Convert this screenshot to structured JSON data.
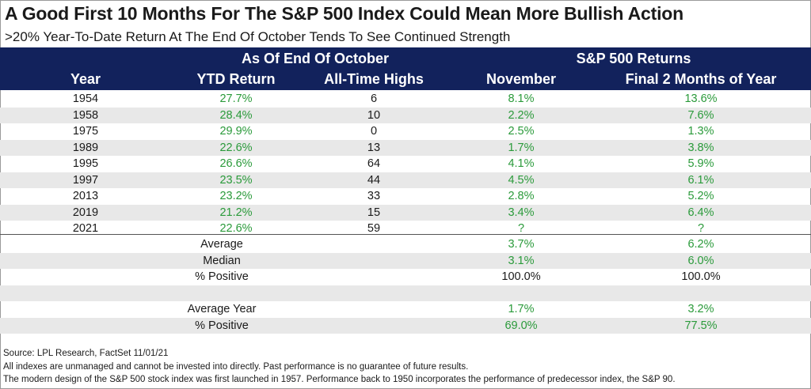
{
  "title": "A Good First 10 Months For The S&P 500 Index Could Mean More Bullish Action",
  "subtitle": ">20% Year-To-Date Return At The End Of October Tends To See Continued Strength",
  "colors": {
    "header_bg": "#12225c",
    "green": "#2a9a3a",
    "stripe": "#e8e8e8"
  },
  "chart_data": {
    "type": "table",
    "group_headers": [
      "As Of End Of October",
      "S&P 500 Returns"
    ],
    "columns": [
      "Year",
      "YTD Return",
      "All-Time Highs",
      "November",
      "Final 2 Months of Year"
    ],
    "rows": [
      [
        "1954",
        "27.7%",
        "6",
        "8.1%",
        "13.6%"
      ],
      [
        "1958",
        "28.4%",
        "10",
        "2.2%",
        "7.6%"
      ],
      [
        "1975",
        "29.9%",
        "0",
        "2.5%",
        "1.3%"
      ],
      [
        "1989",
        "22.6%",
        "13",
        "1.7%",
        "3.8%"
      ],
      [
        "1995",
        "26.6%",
        "64",
        "4.1%",
        "5.9%"
      ],
      [
        "1997",
        "23.5%",
        "44",
        "4.5%",
        "6.1%"
      ],
      [
        "2013",
        "23.2%",
        "33",
        "2.8%",
        "5.2%"
      ],
      [
        "2019",
        "21.2%",
        "15",
        "3.4%",
        "6.4%"
      ],
      [
        "2021",
        "22.6%",
        "59",
        "?",
        "?"
      ]
    ],
    "summary": [
      {
        "label": "Average",
        "november": "3.7%",
        "final2": "6.2%"
      },
      {
        "label": "Median",
        "november": "3.1%",
        "final2": "6.0%"
      },
      {
        "label": "% Positive",
        "november": "100.0%",
        "final2": "100.0%"
      }
    ],
    "all_years": [
      {
        "label": "Average Year",
        "november": "1.7%",
        "final2": "3.2%"
      },
      {
        "label": "% Positive",
        "november": "69.0%",
        "final2": "77.5%"
      }
    ]
  },
  "footer": {
    "source": "Source: LPL Research, FactSet 11/01/21",
    "disclaimer": "All indexes are unmanaged and cannot be invested into directly. Past performance is no guarantee of future results.",
    "note": "The modern design of the S&P 500 stock index was first launched in 1957. Performance back to 1950 incorporates the performance of predecessor index, the S&P 90."
  }
}
